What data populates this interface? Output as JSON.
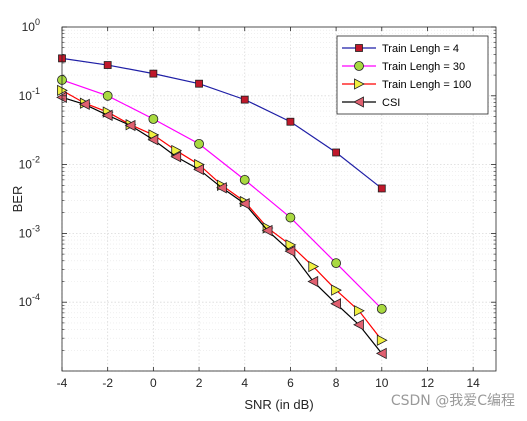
{
  "chart_data": {
    "type": "line",
    "title": "",
    "xlabel": "SNR (in dB)",
    "ylabel": "BER",
    "xlim": [
      -4,
      15
    ],
    "ylim_log10": [
      -5,
      0
    ],
    "yscale": "log",
    "grid": true,
    "minor_grid": true,
    "x_ticks": [
      -4,
      -2,
      0,
      2,
      4,
      6,
      8,
      10,
      12,
      14
    ],
    "y_ticks": [
      {
        "base": "10",
        "exp": "0",
        "value": 1
      },
      {
        "base": "10",
        "exp": "-1",
        "value": 0.1
      },
      {
        "base": "10",
        "exp": "-2",
        "value": 0.01
      },
      {
        "base": "10",
        "exp": "-3",
        "value": 0.001
      },
      {
        "base": "10",
        "exp": "-4",
        "value": 0.0001
      }
    ],
    "legend_position": "top-right",
    "series": [
      {
        "name": "Train Lengh = 4",
        "color": "#1f1fa6",
        "marker": "square",
        "marker_fill": "#c0182a",
        "x": [
          -4,
          -2,
          0,
          2,
          4,
          6,
          8,
          10
        ],
        "y": [
          0.35,
          0.28,
          0.21,
          0.15,
          0.088,
          0.042,
          0.015,
          0.0045
        ]
      },
      {
        "name": "Train Lengh = 30",
        "color": "#ff00ff",
        "marker": "circle",
        "marker_fill": "#a8d940",
        "x": [
          -4,
          -2,
          0,
          2,
          4,
          6,
          8,
          10
        ],
        "y": [
          0.17,
          0.1,
          0.046,
          0.02,
          0.006,
          0.0017,
          0.00037,
          8e-05
        ]
      },
      {
        "name": "Train Lengh = 100",
        "color": "#ff0000",
        "marker": "triangle-right",
        "marker_fill": "#f0f040",
        "x": [
          -4,
          -3,
          -2,
          -1,
          0,
          1,
          2,
          3,
          4,
          5,
          6,
          7,
          8,
          9,
          10
        ],
        "y": [
          0.12,
          0.078,
          0.058,
          0.038,
          0.027,
          0.016,
          0.01,
          0.005,
          0.0029,
          0.0012,
          0.00068,
          0.00033,
          0.00015,
          7.5e-05,
          2.8e-05
        ]
      },
      {
        "name": "CSI",
        "color": "#000000",
        "marker": "triangle-left",
        "marker_fill": "#e06070",
        "x": [
          -4,
          -3,
          -2,
          -1,
          0,
          1,
          2,
          3,
          4,
          5,
          6,
          7,
          8,
          9,
          10
        ],
        "y": [
          0.095,
          0.075,
          0.052,
          0.037,
          0.023,
          0.013,
          0.0085,
          0.0046,
          0.0027,
          0.0011,
          0.00055,
          0.0002,
          9.5e-05,
          4.7e-05,
          1.8e-05
        ]
      }
    ]
  },
  "watermark": "CSDN @我爱C编程"
}
